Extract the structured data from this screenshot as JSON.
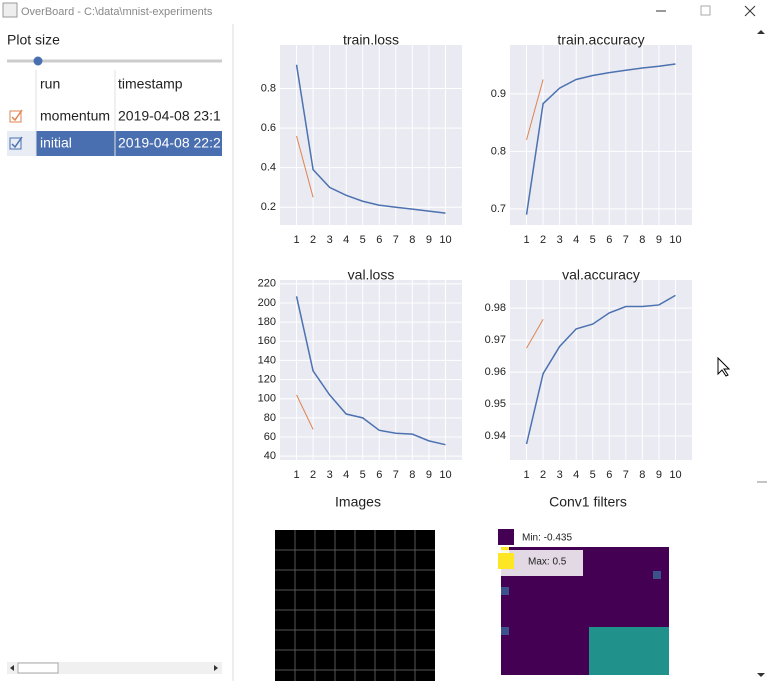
{
  "window": {
    "title": "OverBoard - C:\\data\\mnist-experiments"
  },
  "sidebar": {
    "plot_size_label": "Plot size"
  },
  "table": {
    "headers": [
      "run",
      "timestamp"
    ],
    "rows": [
      [
        "momentum",
        "2019-04-08 23:1"
      ],
      [
        "initial",
        "2019-04-08 22:2"
      ]
    ]
  },
  "chart_data": [
    {
      "type": "line",
      "title": "train.loss",
      "xlim": [
        0,
        11
      ],
      "xticks": [
        1,
        2,
        3,
        4,
        5,
        6,
        7,
        8,
        9,
        10
      ],
      "ylim": [
        0.11,
        1.02
      ],
      "yticks": [
        0.2,
        0.4,
        0.6,
        0.8
      ],
      "grid": true,
      "series": [
        {
          "name": "initial",
          "color": "#4c72b0",
          "x": [
            1,
            2,
            3,
            4,
            5,
            6,
            7,
            8,
            9,
            10
          ],
          "values": [
            0.92,
            0.39,
            0.3,
            0.26,
            0.23,
            0.21,
            0.2,
            0.19,
            0.18,
            0.17
          ]
        },
        {
          "name": "momentum",
          "color": "#dd8452",
          "x": [
            1,
            2
          ],
          "values": [
            0.56,
            0.25
          ]
        }
      ]
    },
    {
      "type": "line",
      "title": "train.accuracy",
      "xlim": [
        0,
        11
      ],
      "xticks": [
        1,
        2,
        3,
        4,
        5,
        6,
        7,
        8,
        9,
        10
      ],
      "ylim": [
        0.672,
        0.985
      ],
      "yticks": [
        0.7,
        0.8,
        0.9
      ],
      "grid": true,
      "series": [
        {
          "name": "initial",
          "color": "#4c72b0",
          "x": [
            1,
            2,
            3,
            4,
            5,
            6,
            7,
            8,
            9,
            10
          ],
          "values": [
            0.69,
            0.883,
            0.91,
            0.925,
            0.932,
            0.937,
            0.941,
            0.945,
            0.948,
            0.952
          ]
        },
        {
          "name": "momentum",
          "color": "#dd8452",
          "x": [
            1,
            2
          ],
          "values": [
            0.82,
            0.925
          ]
        }
      ]
    },
    {
      "type": "line",
      "title": "val.loss",
      "xlim": [
        0,
        11
      ],
      "xticks": [
        1,
        2,
        3,
        4,
        5,
        6,
        7,
        8,
        9,
        10
      ],
      "ylim": [
        36,
        224
      ],
      "yticks": [
        40,
        60,
        80,
        100,
        120,
        140,
        160,
        180,
        200,
        220
      ],
      "grid": true,
      "series": [
        {
          "name": "initial",
          "color": "#4c72b0",
          "x": [
            1,
            2,
            3,
            4,
            5,
            6,
            7,
            8,
            9,
            10
          ],
          "values": [
            207,
            129,
            104,
            84,
            80,
            67,
            64,
            63,
            56,
            52
          ]
        },
        {
          "name": "momentum",
          "color": "#dd8452",
          "x": [
            1,
            2
          ],
          "values": [
            104,
            68
          ]
        }
      ]
    },
    {
      "type": "line",
      "title": "val.accuracy",
      "xlim": [
        0,
        11
      ],
      "xticks": [
        1,
        2,
        3,
        4,
        5,
        6,
        7,
        8,
        9,
        10
      ],
      "ylim": [
        0.9325,
        0.9888
      ],
      "yticks": [
        0.94,
        0.95,
        0.96,
        0.97,
        0.98
      ],
      "grid": true,
      "series": [
        {
          "name": "initial",
          "color": "#4c72b0",
          "x": [
            1,
            2,
            3,
            4,
            5,
            6,
            7,
            8,
            9,
            10
          ],
          "values": [
            0.9375,
            0.9595,
            0.968,
            0.9735,
            0.975,
            0.9785,
            0.9805,
            0.9805,
            0.981,
            0.984
          ]
        },
        {
          "name": "momentum",
          "color": "#dd8452",
          "x": [
            1,
            2
          ],
          "values": [
            0.9675,
            0.9765
          ]
        }
      ]
    }
  ],
  "images": {
    "title": "Images"
  },
  "filters": {
    "title": "Conv1 filters",
    "min_label": "Min: -0.435",
    "max_label": "Max: 0.5"
  }
}
